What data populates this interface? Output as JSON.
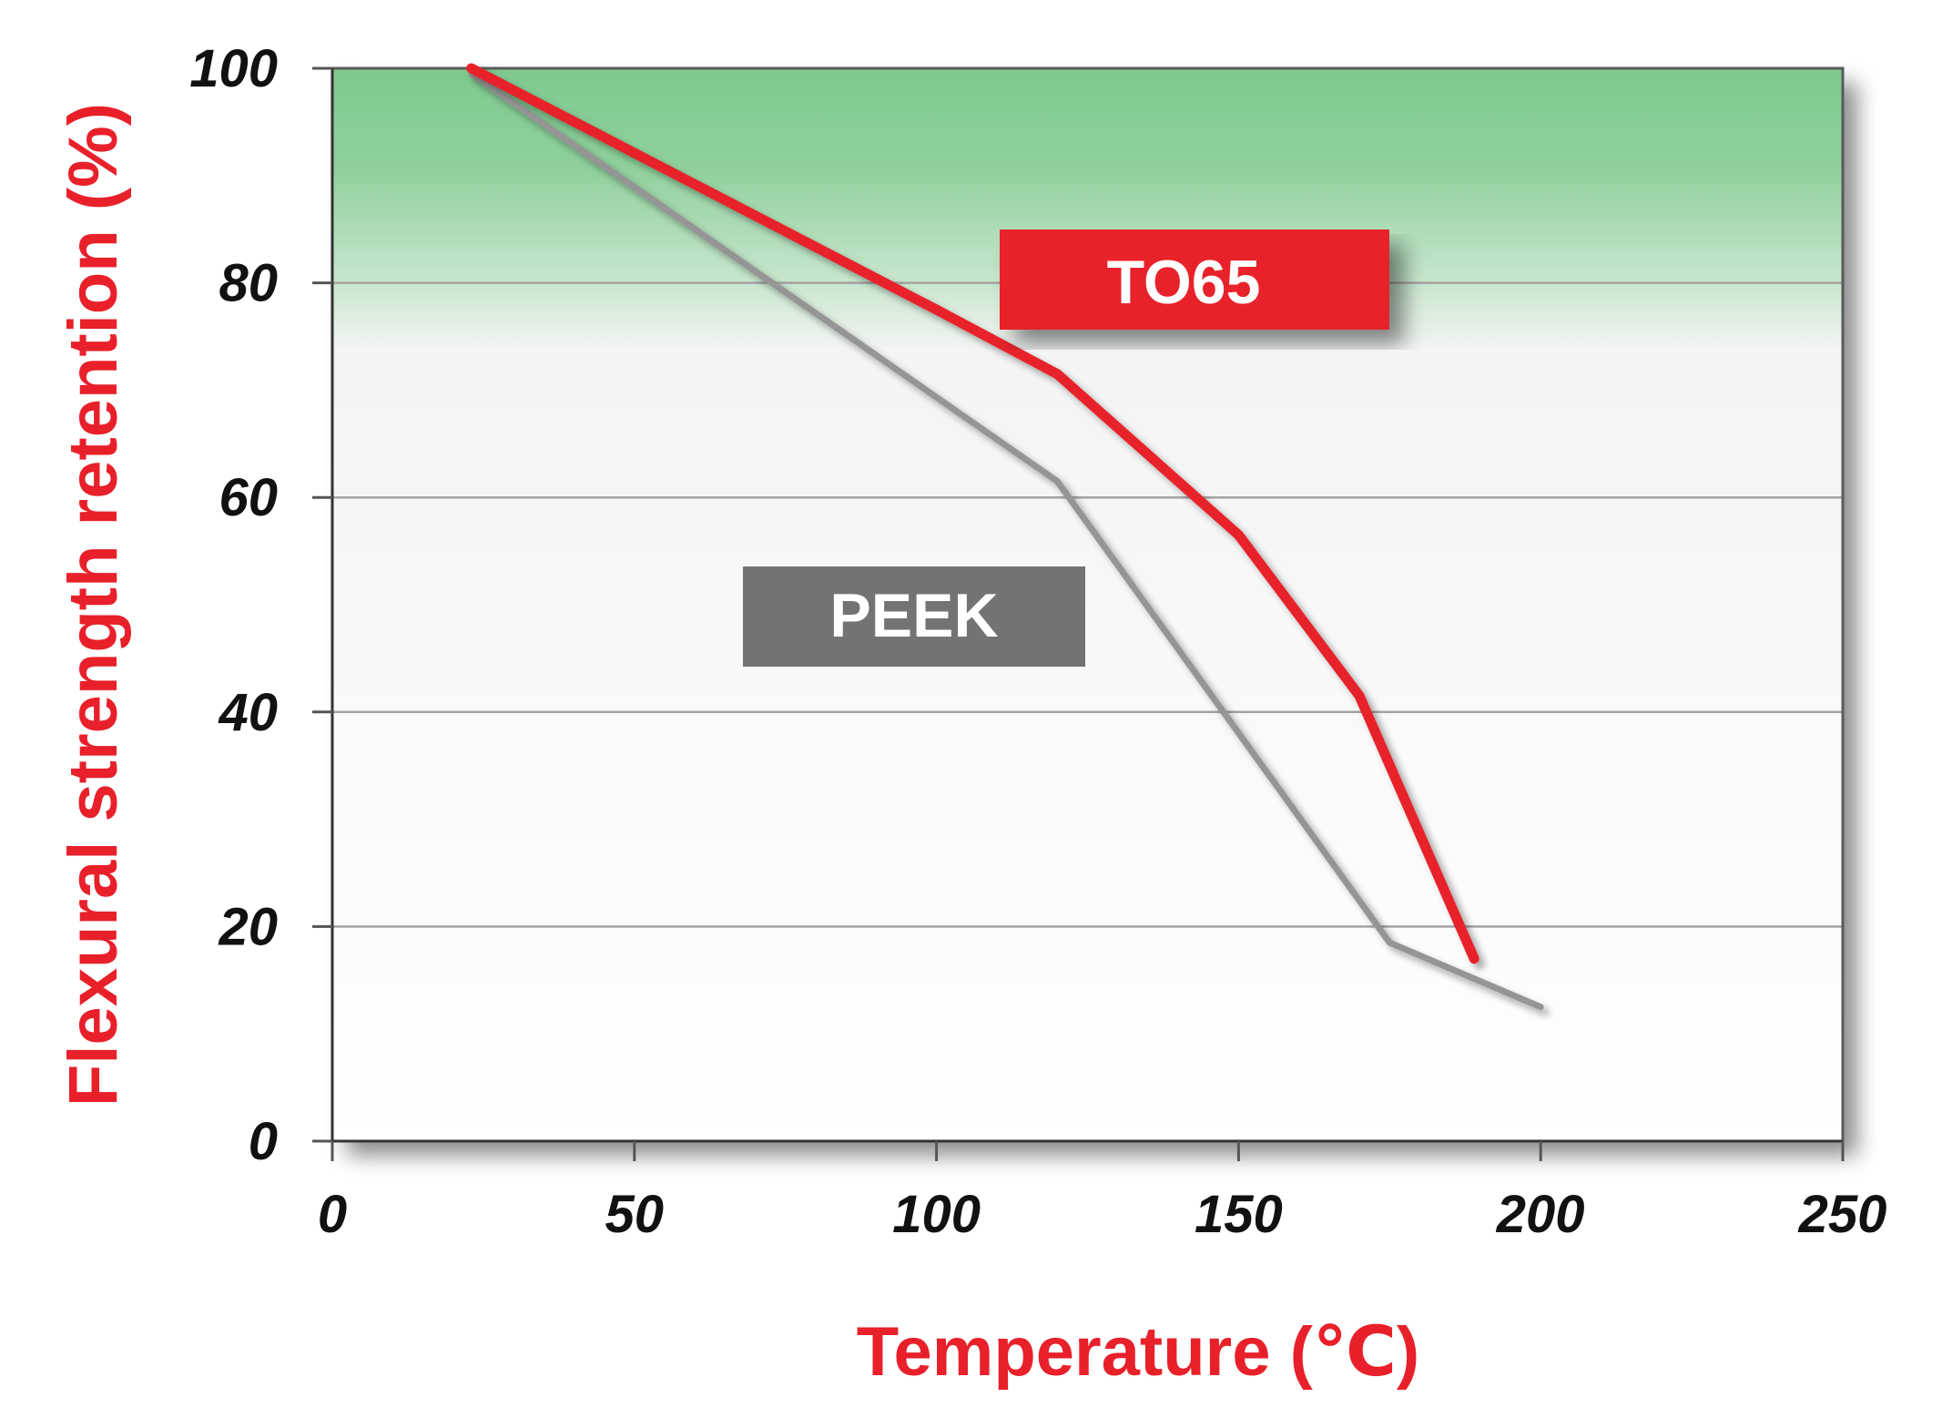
{
  "colors": {
    "accent_red": "#e8202a",
    "peek_gray": "#959595",
    "peek_box": "#737373",
    "band_green": "#7ec98f",
    "grid": "#a3a3a3"
  },
  "chart_data": {
    "type": "line",
    "xlabel": "Temperature (℃)",
    "ylabel": "Flexural strength retention (%)",
    "xlim": [
      0,
      250
    ],
    "ylim": [
      0,
      100
    ],
    "x_ticks": [
      "0",
      "50",
      "100",
      "150",
      "200",
      "250"
    ],
    "y_ticks": [
      "0",
      "20",
      "40",
      "60",
      "80",
      "100"
    ],
    "grid": "horizontal",
    "highlight_band": {
      "from": 80,
      "to": 100,
      "color": "green"
    },
    "series": [
      {
        "name": "TO65",
        "color": "#e8202a",
        "points": [
          [
            23,
            100
          ],
          [
            100,
            77.5
          ],
          [
            120,
            71.5
          ],
          [
            150,
            56.5
          ],
          [
            170,
            41.5
          ],
          [
            189,
            17
          ]
        ]
      },
      {
        "name": "PEEK",
        "color": "#959595",
        "points": [
          [
            23,
            99.5
          ],
          [
            120,
            61.5
          ],
          [
            175,
            18.5
          ],
          [
            200,
            12.5
          ]
        ]
      }
    ],
    "legend": [
      {
        "label": "TO65",
        "position": "upper-center",
        "color": "#e8202a"
      },
      {
        "label": "PEEK",
        "position": "center-left",
        "color": "#737373"
      }
    ]
  }
}
